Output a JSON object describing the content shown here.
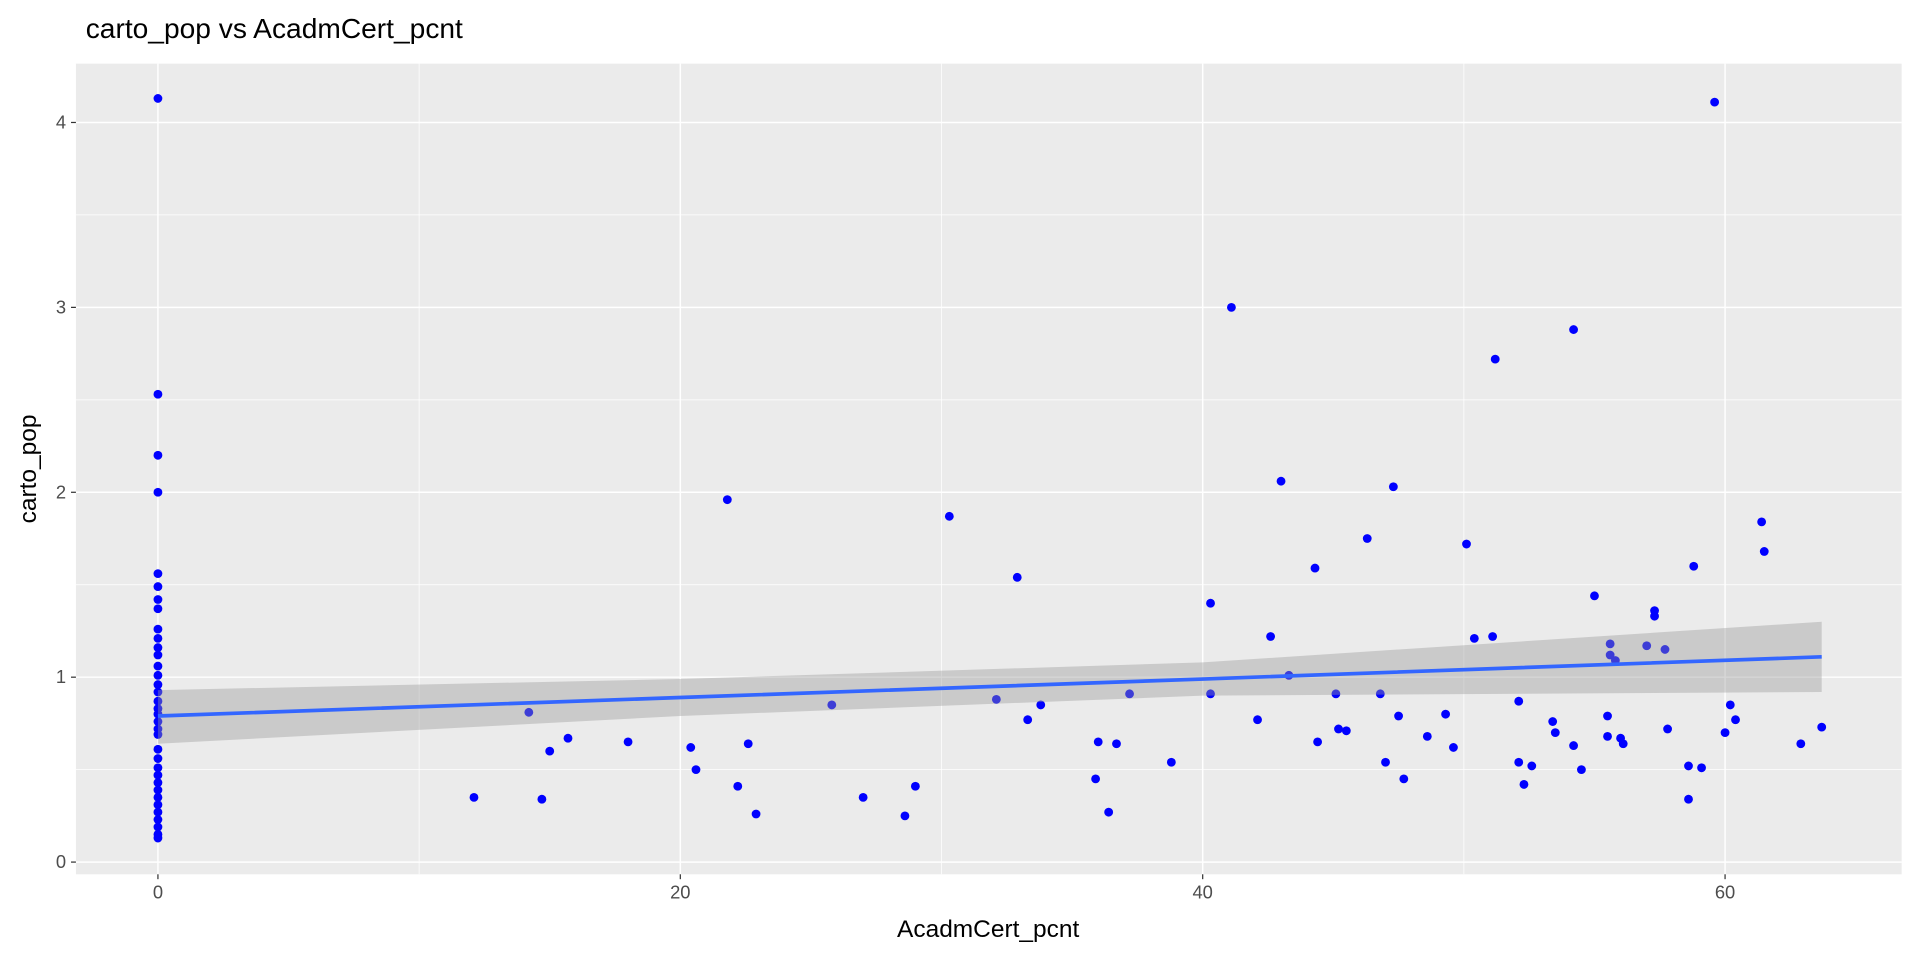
{
  "chart_data": {
    "type": "scatter",
    "title": "carto_pop vs AcadmCert_pcnt",
    "x_label": "AcadmCert_pcnt",
    "y_label": "carto_pop",
    "xlim": [
      -3.14,
      66.76
    ],
    "ylim": [
      -0.066,
      4.318
    ],
    "xticks": [
      0,
      20,
      40,
      60
    ],
    "yticks": [
      0,
      1,
      2,
      3,
      4
    ],
    "xminor": [
      10,
      30,
      50
    ],
    "yminor": [
      0.5,
      1.5,
      2.5,
      3.5
    ],
    "grid": true,
    "points": {
      "color": "#0000ff",
      "x": [
        0,
        0,
        0,
        0,
        0,
        0,
        0,
        0,
        0,
        0,
        0,
        0,
        0,
        0,
        0,
        0,
        0,
        0,
        0,
        0,
        0,
        0,
        0,
        0,
        0,
        0,
        0,
        0,
        0,
        0,
        0,
        0,
        0,
        0,
        0,
        12.1,
        14.2,
        14.7,
        15.0,
        15.7,
        18.0,
        20.4,
        20.6,
        21.8,
        22.2,
        22.6,
        22.9,
        25.8,
        27.0,
        28.6,
        29.0,
        30.3,
        32.1,
        32.9,
        33.3,
        33.8,
        35.9,
        36.0,
        36.4,
        36.7,
        37.2,
        38.8,
        40.3,
        40.3,
        41.1,
        42.1,
        42.6,
        43.0,
        43.3,
        44.3,
        44.4,
        45.1,
        45.2,
        45.5,
        46.3,
        46.8,
        47.0,
        47.3,
        47.5,
        47.7,
        48.6,
        49.3,
        49.6,
        50.1,
        50.4,
        51.1,
        51.2,
        52.1,
        52.1,
        52.3,
        52.6,
        53.4,
        53.5,
        54.2,
        54.2,
        54.5,
        55.0,
        55.5,
        55.5,
        55.6,
        55.6,
        55.8,
        56.0,
        56.1,
        57.0,
        57.3,
        57.3,
        57.7,
        57.8,
        58.6,
        58.6,
        58.8,
        59.1,
        59.6,
        60.0,
        60.2,
        60.4,
        61.4,
        61.5,
        62.9,
        63.7
      ],
      "y": [
        4.13,
        2.53,
        2.2,
        2.0,
        1.56,
        1.49,
        1.42,
        1.37,
        1.26,
        1.21,
        1.16,
        1.12,
        1.06,
        1.01,
        0.96,
        0.92,
        0.87,
        0.83,
        0.8,
        0.76,
        0.72,
        0.69,
        0.61,
        0.56,
        0.51,
        0.47,
        0.43,
        0.39,
        0.35,
        0.31,
        0.27,
        0.23,
        0.19,
        0.15,
        0.13,
        0.35,
        0.81,
        0.34,
        0.6,
        0.67,
        0.65,
        0.62,
        0.5,
        1.96,
        0.41,
        0.64,
        0.26,
        0.85,
        0.35,
        0.25,
        0.41,
        1.87,
        0.88,
        1.54,
        0.77,
        0.85,
        0.45,
        0.65,
        0.27,
        0.64,
        0.91,
        0.54,
        1.4,
        0.91,
        3.0,
        0.77,
        1.22,
        2.06,
        1.01,
        1.59,
        0.65,
        0.91,
        0.72,
        0.71,
        1.75,
        0.91,
        0.54,
        2.03,
        0.79,
        0.45,
        0.68,
        0.8,
        0.62,
        1.72,
        1.21,
        1.22,
        2.72,
        0.87,
        0.54,
        0.42,
        0.52,
        0.76,
        0.7,
        0.63,
        2.88,
        0.5,
        1.44,
        0.79,
        0.68,
        1.18,
        1.12,
        1.09,
        0.67,
        0.64,
        1.17,
        1.36,
        1.33,
        1.15,
        0.72,
        0.52,
        0.34,
        1.6,
        0.51,
        4.11,
        0.7,
        0.85,
        0.77,
        1.84,
        1.68,
        0.64,
        0.73
      ]
    },
    "smooth": {
      "color": "#3366ff",
      "band_color": "#999999",
      "x": [
        0,
        20,
        40,
        63.7
      ],
      "y": [
        0.79,
        0.89,
        0.99,
        1.11
      ],
      "ymin": [
        0.64,
        0.79,
        0.9,
        0.92
      ],
      "ymax": [
        0.93,
        0.99,
        1.08,
        1.3
      ]
    }
  }
}
